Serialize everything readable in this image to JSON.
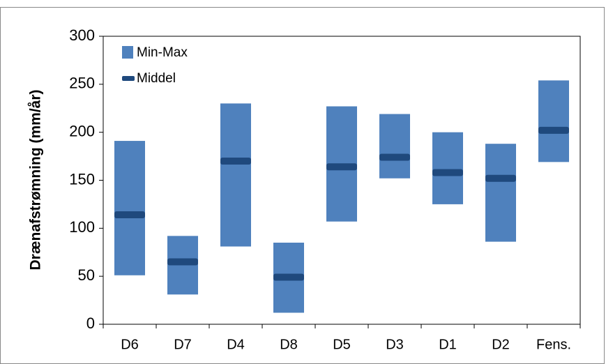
{
  "chart_data": {
    "type": "range_bar",
    "y_label": "Drænafstrømning (mm/år)",
    "categories": [
      "D6",
      "D7",
      "D4",
      "D8",
      "D5",
      "D3",
      "D1",
      "D2",
      "Fens."
    ],
    "series": [
      {
        "name": "Min-Max",
        "color": "#4f81bd",
        "low": [
          51,
          31,
          81,
          12,
          107,
          152,
          125,
          86,
          169
        ],
        "high": [
          191,
          92,
          230,
          85,
          227,
          219,
          200,
          188,
          254
        ]
      },
      {
        "name": "Middel",
        "color": "#1f497d",
        "values": [
          114,
          65,
          170,
          49,
          164,
          174,
          158,
          152,
          202
        ]
      }
    ],
    "ylim": [
      0,
      300
    ],
    "yticks": [
      0,
      50,
      100,
      150,
      200,
      250,
      300
    ],
    "grid": false
  }
}
